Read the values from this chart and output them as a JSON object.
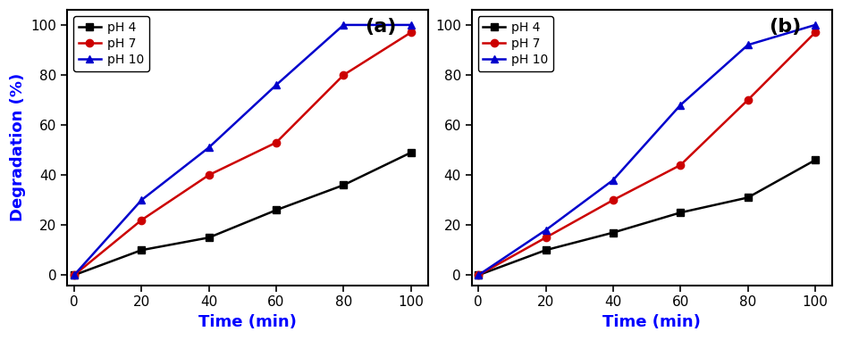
{
  "time": [
    0,
    20,
    40,
    60,
    80,
    100
  ],
  "panel_a": {
    "label": "(a)",
    "ph4": [
      0,
      10,
      15,
      26,
      36,
      49
    ],
    "ph7": [
      0,
      22,
      40,
      53,
      80,
      97
    ],
    "ph10": [
      0,
      30,
      51,
      76,
      100,
      100
    ]
  },
  "panel_b": {
    "label": "(b)",
    "ph4": [
      0,
      10,
      17,
      25,
      31,
      46
    ],
    "ph7": [
      0,
      15,
      30,
      44,
      70,
      97
    ],
    "ph10": [
      0,
      18,
      38,
      68,
      92,
      100
    ]
  },
  "colors": {
    "ph4": "#000000",
    "ph7": "#cc0000",
    "ph10": "#0000cc"
  },
  "legend_labels": [
    "pH 4",
    "pH 7",
    "pH 10"
  ],
  "ylabel": "Degradation (%)",
  "xlabel": "Time (min)",
  "ylim": [
    -4,
    106
  ],
  "xlim": [
    -2,
    105
  ],
  "yticks": [
    0,
    20,
    40,
    60,
    80,
    100
  ],
  "xticks": [
    0,
    20,
    40,
    60,
    80,
    100
  ],
  "ylabel_color": "#0000ff",
  "xlabel_color": "#0000ff",
  "label_fontsize": 13,
  "tick_fontsize": 11,
  "legend_fontsize": 10,
  "linewidth": 1.8,
  "markersize": 6
}
